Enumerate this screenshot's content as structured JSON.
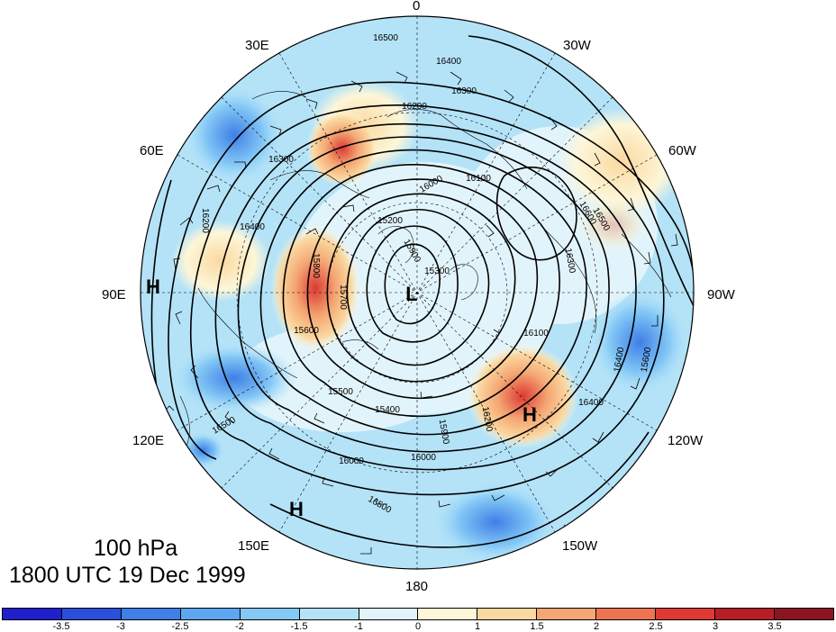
{
  "map": {
    "level": "100 hPa",
    "valid_time": "1800 UTC 19 Dec 1999",
    "longitude_labels": {
      "top": "0",
      "upper_left": "30E",
      "upper_right": "30W",
      "left_upper": "60E",
      "right_upper": "60W",
      "left": "90E",
      "right": "90W",
      "left_lower": "120E",
      "right_lower": "120W",
      "lower_left": "150E",
      "lower_right": "150W",
      "bottom": "180"
    },
    "pressure_centers": [
      {
        "label": "H"
      },
      {
        "label": "L"
      },
      {
        "label": "H"
      },
      {
        "label": "H"
      }
    ],
    "contour_labels": [
      "16500",
      "16400",
      "16300",
      "16200",
      "16100",
      "16000",
      "15900",
      "15800",
      "15700",
      "15600",
      "15500",
      "15400",
      "15300",
      "15200",
      "16200",
      "16300",
      "16400",
      "16500",
      "16000",
      "15900",
      "16100",
      "16200",
      "16400",
      "16600",
      "16500",
      "16300",
      "16400",
      "15600",
      "16000",
      "16500"
    ],
    "colorbar": {
      "labels": [
        "-3.5",
        "-3",
        "-2.5",
        "-2",
        "-1.5",
        "-1",
        "0",
        "1",
        "1.5",
        "2",
        "2.5",
        "3",
        "3.5"
      ],
      "colors": [
        "#1f1fcc",
        "#2a4fd8",
        "#3f7fe6",
        "#5ea6f0",
        "#84c8f6",
        "#b4e3f8",
        "#e2f4fb",
        "#fdf6d8",
        "#fbd8a0",
        "#f4a673",
        "#ec7450",
        "#dc3a33",
        "#b51e24",
        "#8a1520"
      ]
    }
  }
}
